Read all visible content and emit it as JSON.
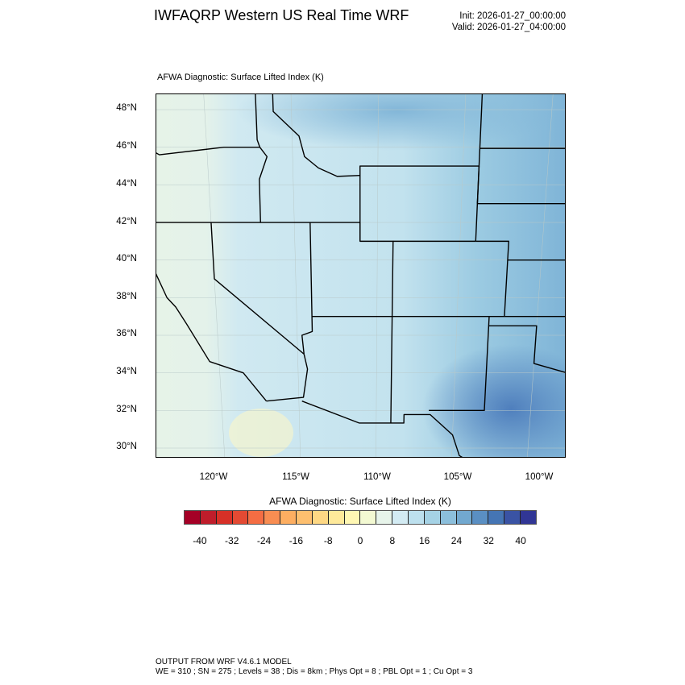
{
  "header": {
    "title": "IWFAQRP Western US Real Time WRF",
    "init": "Init: 2026-01-27_00:00:00",
    "valid": "Valid: 2026-01-27_04:00:00"
  },
  "plot": {
    "subtitle": "AFWA Diagnostic: Surface Lifted Index   (K)",
    "lat_labels": [
      "48°N",
      "46°N",
      "44°N",
      "42°N",
      "40°N",
      "38°N",
      "36°N",
      "34°N",
      "32°N",
      "30°N"
    ],
    "lon_labels": [
      "120°W",
      "115°W",
      "110°W",
      "105°W",
      "100°W"
    ]
  },
  "colorbar": {
    "title": "AFWA Diagnostic: Surface Lifted Index  (K)",
    "labels": [
      "-40",
      "-32",
      "-24",
      "-16",
      "-8",
      "0",
      "8",
      "16",
      "24",
      "32",
      "40"
    ],
    "colors": [
      "#a50026",
      "#bf1d2b",
      "#d73027",
      "#e34a33",
      "#f46d43",
      "#f88d52",
      "#fdae61",
      "#fdbf6f",
      "#fed884",
      "#fee99a",
      "#fff7b3",
      "#f3f9d2",
      "#e7f4ea",
      "#d3ebf3",
      "#bde0ee",
      "#a5d2e5",
      "#8cbfdc",
      "#72a8cf",
      "#5a8fc3",
      "#4575b4",
      "#3a53a4",
      "#313695"
    ]
  },
  "footer": {
    "line1": "OUTPUT FROM WRF V4.6.1 MODEL",
    "line2": "WE = 310 ; SN = 275 ; Levels = 38 ; Dis = 8km ; Phys Opt = 8 ; PBL Opt = 1 ; Cu Opt = 3"
  }
}
